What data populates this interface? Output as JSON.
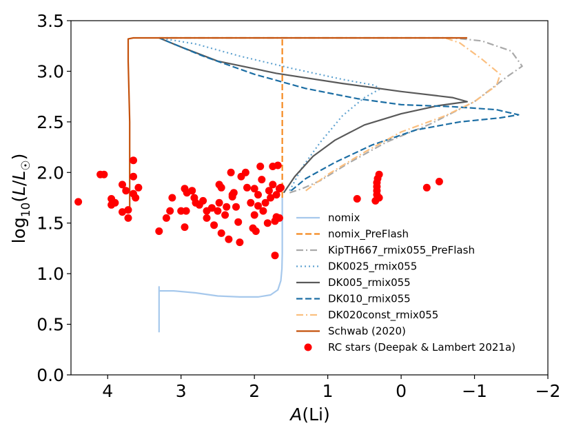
{
  "chart_data": {
    "type": "line",
    "xlabel": "A(Li)",
    "ylabel": "log10(L/L☉)",
    "xlim": [
      4.5,
      -2.0
    ],
    "ylim": [
      0.0,
      3.5
    ],
    "xticks": [
      4,
      3,
      2,
      1,
      0,
      -1,
      -2
    ],
    "xtick_labels": [
      "4",
      "3",
      "2",
      "1",
      "0",
      "−1",
      "−2"
    ],
    "yticks": [
      0.0,
      0.5,
      1.0,
      1.5,
      2.0,
      2.5,
      3.0,
      3.5
    ],
    "ytick_labels": [
      "0.0",
      "0.5",
      "1.0",
      "1.5",
      "2.0",
      "2.5",
      "3.0",
      "3.5"
    ],
    "legend_position": "lower-right",
    "series": [
      {
        "name": "nomix",
        "color": "#a6c8ec",
        "style": "solid",
        "points": [
          [
            3.3,
            0.42
          ],
          [
            3.3,
            0.87
          ],
          [
            3.3,
            0.83
          ],
          [
            3.1,
            0.83
          ],
          [
            2.8,
            0.81
          ],
          [
            2.5,
            0.78
          ],
          [
            2.2,
            0.77
          ],
          [
            1.95,
            0.77
          ],
          [
            1.78,
            0.79
          ],
          [
            1.68,
            0.84
          ],
          [
            1.64,
            0.93
          ],
          [
            1.625,
            1.05
          ],
          [
            1.62,
            1.2
          ],
          [
            1.62,
            1.4
          ],
          [
            1.62,
            1.6
          ],
          [
            1.62,
            1.75
          ]
        ]
      },
      {
        "name": "nomix_PreFlash",
        "color": "#f4891f",
        "style": "dashed",
        "points": [
          [
            1.62,
            1.75
          ],
          [
            1.62,
            2.2
          ],
          [
            1.62,
            2.8
          ],
          [
            1.62,
            3.33
          ]
        ]
      },
      {
        "name": "KipTH667_rmix055_PreFlash",
        "color": "#a9a9a9",
        "style": "dashdot",
        "points": [
          [
            1.52,
            1.8
          ],
          [
            1.35,
            1.84
          ],
          [
            1.1,
            1.92
          ],
          [
            0.7,
            2.1
          ],
          [
            0.2,
            2.3
          ],
          [
            -0.4,
            2.48
          ],
          [
            -1.0,
            2.7
          ],
          [
            -1.45,
            2.95
          ],
          [
            -1.65,
            3.05
          ],
          [
            -1.5,
            3.2
          ],
          [
            -1.1,
            3.3
          ],
          [
            -0.7,
            3.33
          ],
          [
            0.3,
            3.33
          ],
          [
            1.5,
            3.33
          ],
          [
            3.3,
            3.33
          ]
        ]
      },
      {
        "name": "DK0025_rmix055",
        "color": "#5fa2d0",
        "style": "dotted",
        "points": [
          [
            1.52,
            1.82
          ],
          [
            1.35,
            2.05
          ],
          [
            1.1,
            2.3
          ],
          [
            0.8,
            2.56
          ],
          [
            0.5,
            2.74
          ],
          [
            0.3,
            2.82
          ],
          [
            0.35,
            2.86
          ],
          [
            0.8,
            2.92
          ],
          [
            1.5,
            3.03
          ],
          [
            2.2,
            3.15
          ],
          [
            2.8,
            3.27
          ],
          [
            3.3,
            3.33
          ]
        ]
      },
      {
        "name": "DK005_rmix055",
        "color": "#595959",
        "style": "solid",
        "points": [
          [
            1.6,
            1.8
          ],
          [
            1.45,
            1.96
          ],
          [
            1.2,
            2.16
          ],
          [
            0.9,
            2.32
          ],
          [
            0.5,
            2.47
          ],
          [
            0.0,
            2.58
          ],
          [
            -0.5,
            2.66
          ],
          [
            -0.9,
            2.7
          ],
          [
            -0.7,
            2.74
          ],
          [
            0.0,
            2.8
          ],
          [
            0.8,
            2.88
          ],
          [
            1.7,
            2.98
          ],
          [
            2.5,
            3.1
          ],
          [
            3.0,
            3.24
          ],
          [
            3.3,
            3.33
          ]
        ]
      },
      {
        "name": "DK010_rmix055",
        "color": "#1c6ea4",
        "style": "dashed",
        "points": [
          [
            1.5,
            1.82
          ],
          [
            1.3,
            1.94
          ],
          [
            0.9,
            2.1
          ],
          [
            0.4,
            2.27
          ],
          [
            -0.2,
            2.42
          ],
          [
            -0.8,
            2.5
          ],
          [
            -1.35,
            2.54
          ],
          [
            -1.6,
            2.57
          ],
          [
            -1.3,
            2.62
          ],
          [
            -0.7,
            2.65
          ],
          [
            0.0,
            2.67
          ],
          [
            0.6,
            2.73
          ],
          [
            1.3,
            2.83
          ],
          [
            2.0,
            2.97
          ],
          [
            2.7,
            3.15
          ],
          [
            3.2,
            3.3
          ],
          [
            3.3,
            3.33
          ]
        ]
      },
      {
        "name": "DK020const_rmix055",
        "color": "#fbbf7f",
        "style": "dashdot",
        "points": [
          [
            1.3,
            1.82
          ],
          [
            1.0,
            1.98
          ],
          [
            0.5,
            2.2
          ],
          [
            0.0,
            2.4
          ],
          [
            -0.6,
            2.56
          ],
          [
            -1.0,
            2.7
          ],
          [
            -1.3,
            2.86
          ],
          [
            -1.35,
            2.97
          ],
          [
            -1.1,
            3.12
          ],
          [
            -0.8,
            3.28
          ],
          [
            -0.6,
            3.33
          ],
          [
            0.3,
            3.33
          ],
          [
            1.5,
            3.33
          ],
          [
            3.3,
            3.33
          ]
        ]
      },
      {
        "name": "Schwab (2020)",
        "color": "#c4510b",
        "style": "solid",
        "points": [
          [
            -0.9,
            3.33
          ],
          [
            3.65,
            3.33
          ],
          [
            3.72,
            3.32
          ],
          [
            3.72,
            3.1
          ],
          [
            3.7,
            2.5
          ],
          [
            3.7,
            1.7
          ],
          [
            3.7,
            1.6
          ]
        ]
      }
    ],
    "scatter": {
      "name": "RC stars (Deepak & Lambert 2021a)",
      "color": "#ff0000",
      "points": [
        [
          4.4,
          1.71
        ],
        [
          4.1,
          1.98
        ],
        [
          4.05,
          1.98
        ],
        [
          3.95,
          1.74
        ],
        [
          3.9,
          1.7
        ],
        [
          3.95,
          1.68
        ],
        [
          3.8,
          1.88
        ],
        [
          3.75,
          1.82
        ],
        [
          3.8,
          1.61
        ],
        [
          3.72,
          1.63
        ],
        [
          3.72,
          1.55
        ],
        [
          3.65,
          2.12
        ],
        [
          3.65,
          1.96
        ],
        [
          3.65,
          1.79
        ],
        [
          3.62,
          1.75
        ],
        [
          3.58,
          1.85
        ],
        [
          3.3,
          1.42
        ],
        [
          3.2,
          1.55
        ],
        [
          3.15,
          1.62
        ],
        [
          3.12,
          1.75
        ],
        [
          3.0,
          1.62
        ],
        [
          2.95,
          1.84
        ],
        [
          2.92,
          1.8
        ],
        [
          2.93,
          1.62
        ],
        [
          2.95,
          1.46
        ],
        [
          2.85,
          1.82
        ],
        [
          2.82,
          1.75
        ],
        [
          2.8,
          1.7
        ],
        [
          2.75,
          1.68
        ],
        [
          2.7,
          1.72
        ],
        [
          2.65,
          1.62
        ],
        [
          2.65,
          1.55
        ],
        [
          2.58,
          1.65
        ],
        [
          2.55,
          1.48
        ],
        [
          2.5,
          1.62
        ],
        [
          2.48,
          1.7
        ],
        [
          2.48,
          1.88
        ],
        [
          2.45,
          1.85
        ],
        [
          2.45,
          1.4
        ],
        [
          2.4,
          1.58
        ],
        [
          2.38,
          1.66
        ],
        [
          2.35,
          1.34
        ],
        [
          2.3,
          1.76
        ],
        [
          2.32,
          2.0
        ],
        [
          2.3,
          1.78
        ],
        [
          2.28,
          1.8
        ],
        [
          2.25,
          1.66
        ],
        [
          2.22,
          1.51
        ],
        [
          2.2,
          1.31
        ],
        [
          2.18,
          1.96
        ],
        [
          2.12,
          2.0
        ],
        [
          2.1,
          1.85
        ],
        [
          2.05,
          1.7
        ],
        [
          2.0,
          1.84
        ],
        [
          2.02,
          1.45
        ],
        [
          2.0,
          1.58
        ],
        [
          1.98,
          1.42
        ],
        [
          1.95,
          1.78
        ],
        [
          1.95,
          1.67
        ],
        [
          1.9,
          1.93
        ],
        [
          1.92,
          2.06
        ],
        [
          1.88,
          1.62
        ],
        [
          1.85,
          1.7
        ],
        [
          1.82,
          1.5
        ],
        [
          1.8,
          1.82
        ],
        [
          1.78,
          1.75
        ],
        [
          1.75,
          1.88
        ],
        [
          1.75,
          2.06
        ],
        [
          1.72,
          1.52
        ],
        [
          1.72,
          1.18
        ],
        [
          1.7,
          1.56
        ],
        [
          1.7,
          1.78
        ],
        [
          1.68,
          2.07
        ],
        [
          1.66,
          1.84
        ],
        [
          1.66,
          1.55
        ],
        [
          1.64,
          1.85
        ],
        [
          0.6,
          1.74
        ],
        [
          0.35,
          1.72
        ],
        [
          0.33,
          1.78
        ],
        [
          0.33,
          1.82
        ],
        [
          0.33,
          1.86
        ],
        [
          0.33,
          1.9
        ],
        [
          0.32,
          1.94
        ],
        [
          0.3,
          1.75
        ],
        [
          0.3,
          1.98
        ],
        [
          -0.35,
          1.85
        ],
        [
          -0.52,
          1.91
        ]
      ]
    }
  }
}
